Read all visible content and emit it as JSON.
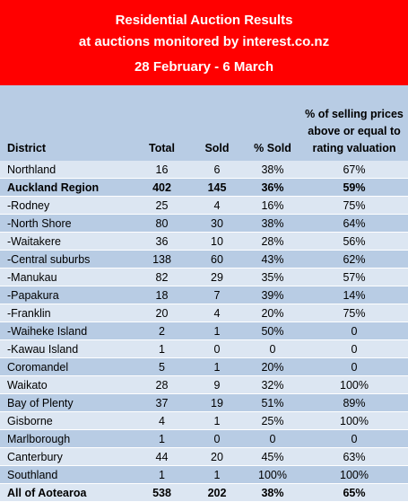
{
  "banner": {
    "title_line1": "Residential Auction Results",
    "title_line2": "at auctions monitored by interest.co.nz",
    "dates": "28 February - 6 March"
  },
  "columns": {
    "district": "District",
    "total": "Total",
    "sold": "Sold",
    "pct_sold": "% Sold",
    "valuation": "% of selling prices above or equal to rating valuation"
  },
  "rows": [
    {
      "district": "Northland",
      "total": "16",
      "sold": "6",
      "pct_sold": "38%",
      "valuation": "67%",
      "bold": false
    },
    {
      "district": "Auckland Region",
      "total": "402",
      "sold": "145",
      "pct_sold": "36%",
      "valuation": "59%",
      "bold": true
    },
    {
      "district": "-Rodney",
      "total": "25",
      "sold": "4",
      "pct_sold": "16%",
      "valuation": "75%",
      "bold": false
    },
    {
      "district": "-North Shore",
      "total": "80",
      "sold": "30",
      "pct_sold": "38%",
      "valuation": "64%",
      "bold": false
    },
    {
      "district": "-Waitakere",
      "total": "36",
      "sold": "10",
      "pct_sold": "28%",
      "valuation": "56%",
      "bold": false
    },
    {
      "district": "-Central suburbs",
      "total": "138",
      "sold": "60",
      "pct_sold": "43%",
      "valuation": "62%",
      "bold": false
    },
    {
      "district": "-Manukau",
      "total": "82",
      "sold": "29",
      "pct_sold": "35%",
      "valuation": "57%",
      "bold": false
    },
    {
      "district": "-Papakura",
      "total": "18",
      "sold": "7",
      "pct_sold": "39%",
      "valuation": "14%",
      "bold": false
    },
    {
      "district": "-Franklin",
      "total": "20",
      "sold": "4",
      "pct_sold": "20%",
      "valuation": "75%",
      "bold": false
    },
    {
      "district": "-Waiheke Island",
      "total": "2",
      "sold": "1",
      "pct_sold": "50%",
      "valuation": "0",
      "bold": false
    },
    {
      "district": "-Kawau Island",
      "total": "1",
      "sold": "0",
      "pct_sold": "0",
      "valuation": "0",
      "bold": false
    },
    {
      "district": "Coromandel",
      "total": "5",
      "sold": "1",
      "pct_sold": "20%",
      "valuation": "0",
      "bold": false
    },
    {
      "district": "Waikato",
      "total": "28",
      "sold": "9",
      "pct_sold": "32%",
      "valuation": "100%",
      "bold": false
    },
    {
      "district": "Bay of Plenty",
      "total": "37",
      "sold": "19",
      "pct_sold": "51%",
      "valuation": "89%",
      "bold": false
    },
    {
      "district": "Gisborne",
      "total": "4",
      "sold": "1",
      "pct_sold": "25%",
      "valuation": "100%",
      "bold": false
    },
    {
      "district": "Marlborough",
      "total": "1",
      "sold": "0",
      "pct_sold": "0",
      "valuation": "0",
      "bold": false
    },
    {
      "district": "Canterbury",
      "total": "44",
      "sold": "20",
      "pct_sold": "45%",
      "valuation": "63%",
      "bold": false
    },
    {
      "district": "Southland",
      "total": "1",
      "sold": "1",
      "pct_sold": "100%",
      "valuation": "100%",
      "bold": false
    },
    {
      "district": "All of Aotearoa",
      "total": "538",
      "sold": "202",
      "pct_sold": "38%",
      "valuation": "65%",
      "bold": true
    }
  ]
}
